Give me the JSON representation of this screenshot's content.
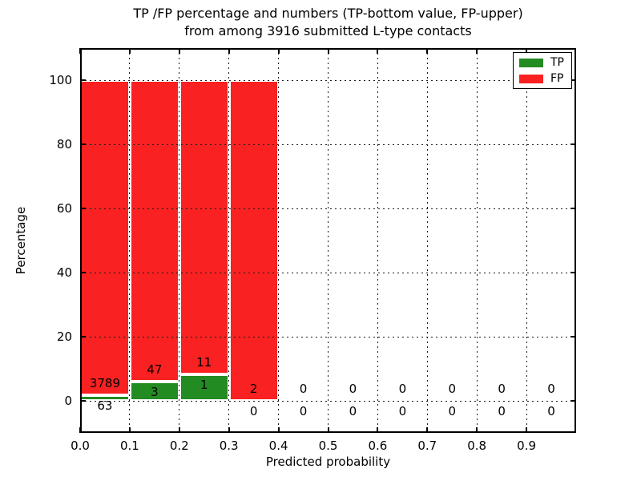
{
  "title": {
    "line1": "TP /FP percentage and numbers (TP-bottom value, FP-upper)",
    "line2": "from among 3916 submitted L-type contacts"
  },
  "legend": {
    "position": "upper right",
    "items": [
      {
        "label": "TP",
        "color": "#228b22"
      },
      {
        "label": "FP",
        "color": "#f92121"
      }
    ]
  },
  "chart_data": {
    "type": "bar",
    "stacked": true,
    "title": "TP /FP percentage and numbers (TP-bottom value, FP-upper) from among 3916 submitted L-type contacts",
    "xlabel": "Predicted probability",
    "ylabel": "Percentage",
    "xlim": [
      0.0,
      1.0
    ],
    "ylim": [
      -10,
      110
    ],
    "xticks": [
      "0.0",
      "0.1",
      "0.2",
      "0.3",
      "0.4",
      "0.5",
      "0.6",
      "0.7",
      "0.8",
      "0.9"
    ],
    "yticks": [
      "0",
      "20",
      "40",
      "60",
      "80",
      "100"
    ],
    "grid": true,
    "grid_style": "dotted",
    "total_submitted_contacts": 3916,
    "series": [
      {
        "name": "TP",
        "color": "#228b22"
      },
      {
        "name": "FP",
        "color": "#f92121"
      }
    ],
    "bins": [
      {
        "x0": 0.0,
        "x1": 0.1,
        "tp": 63,
        "fp": 3789,
        "tp_pct": 1.64,
        "fp_pct": 98.36
      },
      {
        "x0": 0.1,
        "x1": 0.2,
        "tp": 3,
        "fp": 47,
        "tp_pct": 6.0,
        "fp_pct": 94.0
      },
      {
        "x0": 0.2,
        "x1": 0.3,
        "tp": 1,
        "fp": 11,
        "tp_pct": 8.33,
        "fp_pct": 91.67
      },
      {
        "x0": 0.3,
        "x1": 0.4,
        "tp": 0,
        "fp": 2,
        "tp_pct": 0.0,
        "fp_pct": 100.0
      },
      {
        "x0": 0.4,
        "x1": 0.5,
        "tp": 0,
        "fp": 0,
        "tp_pct": 0.0,
        "fp_pct": 0.0
      },
      {
        "x0": 0.5,
        "x1": 0.6,
        "tp": 0,
        "fp": 0,
        "tp_pct": 0.0,
        "fp_pct": 0.0
      },
      {
        "x0": 0.6,
        "x1": 0.7,
        "tp": 0,
        "fp": 0,
        "tp_pct": 0.0,
        "fp_pct": 0.0
      },
      {
        "x0": 0.7,
        "x1": 0.8,
        "tp": 0,
        "fp": 0,
        "tp_pct": 0.0,
        "fp_pct": 0.0
      },
      {
        "x0": 0.8,
        "x1": 0.9,
        "tp": 0,
        "fp": 0,
        "tp_pct": 0.0,
        "fp_pct": 0.0
      },
      {
        "x0": 0.9,
        "x1": 1.0,
        "tp": 0,
        "fp": 0,
        "tp_pct": 0.0,
        "fp_pct": 0.0
      }
    ]
  }
}
